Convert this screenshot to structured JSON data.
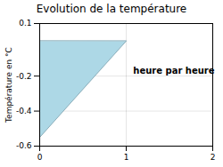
{
  "chart_data": {
    "type": "area",
    "title": "Evolution de la température",
    "ylabel": "Température en °C",
    "x": [
      0,
      0,
      1
    ],
    "values": [
      0,
      -0.55,
      0
    ],
    "color": "#add8e6",
    "xlim": [
      0,
      2
    ],
    "ylim": [
      -0.6,
      0.1
    ],
    "xticks": [
      0,
      1,
      2
    ],
    "yticks": [
      0.1,
      -0.2,
      -0.4,
      -0.6
    ],
    "grid": true,
    "annotations": [
      {
        "text": "heure par heure",
        "x": 1.08,
        "y": -0.17
      }
    ]
  }
}
